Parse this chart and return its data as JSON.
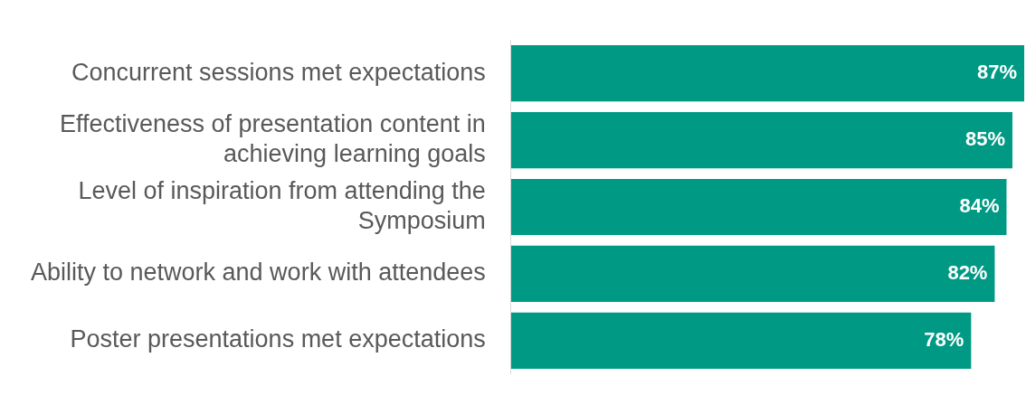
{
  "chart_data": {
    "type": "bar",
    "orientation": "horizontal",
    "categories": [
      "Concurrent sessions met expectations",
      "Effectiveness of presentation content in achieving learning goals",
      "Level of inspiration from attending the Symposium",
      "Ability to network and work with attendees",
      "Poster presentations met expectations"
    ],
    "values": [
      87,
      85,
      84,
      82,
      78
    ],
    "value_labels": [
      "87%",
      "85%",
      "84%",
      "82%",
      "78%"
    ],
    "color": "#009a84",
    "xlim": [
      0,
      87.3
    ],
    "tick_labels": "y",
    "legend": false
  }
}
